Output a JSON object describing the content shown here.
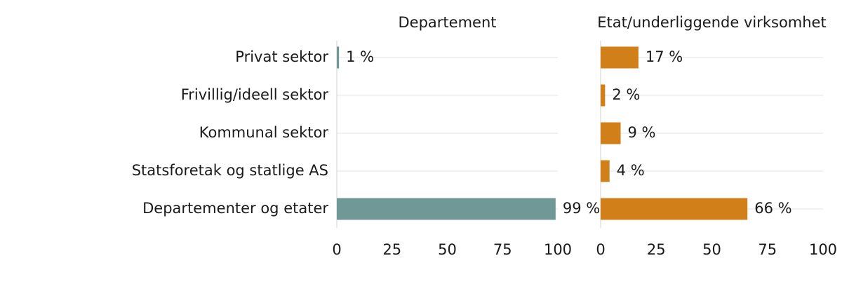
{
  "chart_data": [
    {
      "type": "bar",
      "title": "Departement",
      "categories": [
        "Privat sektor",
        "Frivillig/ideell sektor",
        "Kommunal sektor",
        "Statsforetak og statlige AS",
        "Departementer og etater"
      ],
      "values": [
        1,
        null,
        null,
        null,
        99
      ],
      "value_labels": [
        "1 %",
        null,
        null,
        null,
        "99 %"
      ],
      "color": "#6f9896",
      "xlim": [
        0,
        100
      ],
      "xticks": [
        0,
        25,
        50,
        75,
        100
      ]
    },
    {
      "type": "bar",
      "title": "Etat/underliggende virksomhet",
      "values": [
        17,
        2,
        9,
        4,
        66
      ],
      "value_labels": [
        "17 %",
        "2 %",
        "9 %",
        "4 %",
        "66 %"
      ],
      "color": "#d07f19",
      "xlim": [
        0,
        100
      ],
      "xticks": [
        0,
        25,
        50,
        75,
        100
      ]
    }
  ]
}
